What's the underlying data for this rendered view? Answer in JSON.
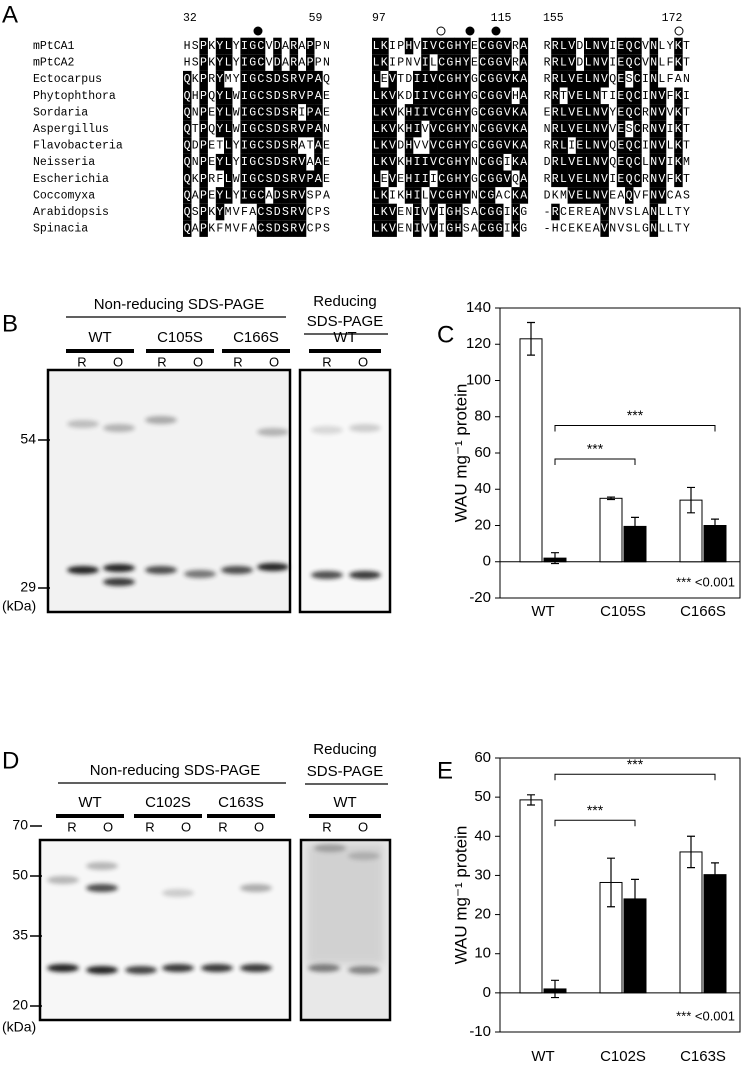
{
  "panels": {
    "a": "A",
    "b": "B",
    "c": "C",
    "d": "D",
    "e": "E"
  },
  "alignment": {
    "positions": [
      32,
      59,
      97,
      115,
      155,
      172
    ],
    "rows": [
      {
        "name": "mPtCA1",
        "blocks": [
          "HSPKYLYIGCVDARAPPN",
          "LKIPHVIVCGHYECGGVRA",
          "RRLVDLNVIEQCVNLYKT"
        ]
      },
      {
        "name": "mPtCA2",
        "blocks": [
          "HSPKYLYIGCVDARAPPN",
          "LKIPNVILCGHYECGGVRA",
          "RRLVDLNVIEQCVNLFKT"
        ]
      },
      {
        "name": "Ectocarpus",
        "blocks": [
          "QKPRYMYIGCSDSRVPAQ",
          "LEVTDIIVCGHYGCGGVKA",
          "RRLVELNVQESCINLFAN"
        ]
      },
      {
        "name": "Phytophthora",
        "blocks": [
          "QHPQYLWIGCSDSRVPAE",
          "LKVKDIIVCGHYGCGGVHA",
          "RRTVELNTIEQCINVFKI"
        ]
      },
      {
        "name": "Sordaria",
        "blocks": [
          "QNPEYLWIGCSDSRIPAE",
          "LKVKHIIVCGHYGCGGVKA",
          "ERLVELNVYEQCRNVVKT"
        ]
      },
      {
        "name": "Aspergillus",
        "blocks": [
          "QTPQYLWIGCSDSRVPAN",
          "LKVKHIVVCGHYNCGGVKA",
          "NRLVELNVVESCRNVIKT"
        ]
      },
      {
        "name": "Flavobacteria",
        "blocks": [
          "QDPETLYIGCSDSRATAE",
          "LKVDHVVVCGHYGCGGVKA",
          "RRLIELNVQEQCINVLKT"
        ]
      },
      {
        "name": "Neisseria",
        "blocks": [
          "QNPEYLYIGCSDSRVAAE",
          "LKVKHIIVCGHYNCGGIKA",
          "DRLVELNVQEQCLNVIKM"
        ]
      },
      {
        "name": "Escherichia",
        "blocks": [
          "QKPRFLWIGCSDSRVPAE",
          "LEVEHIIICGHYGCGGVQA",
          "RRLVELNVIEQCRNVFKT"
        ]
      },
      {
        "name": "Coccomyxa",
        "blocks": [
          "QAPEYLYIGCADSRVSPA",
          "LKIKHILVCGHYNCGACKA",
          "DKMVELNVEAQVFNVCAS"
        ]
      },
      {
        "name": "Arabidopsis",
        "blocks": [
          "QSPKYMVFACSDSRVCPS",
          "LKVENIVVIGHSACGGIKG",
          "-RCEREAVNVSLANLLTY"
        ]
      },
      {
        "name": "Spinacia",
        "blocks": [
          "QAPKFMVFACSDSRVCPS",
          "LKVENIVVIGHSACGGIKG",
          "-HCEKEAVNVSLGNLLTY"
        ]
      }
    ]
  },
  "gels": [
    {
      "header": "Non-reducing SDS-PAGE",
      "groups": [
        "WT",
        "C105S",
        "C166S"
      ],
      "lanes": [
        "R",
        "O"
      ],
      "reducing_header": [
        "Reducing",
        "SDS-PAGE"
      ],
      "reducing_group": "WT",
      "markers": [
        54,
        29
      ],
      "unit": "(kDa)"
    },
    {
      "header": "Non-reducing SDS-PAGE",
      "groups": [
        "WT",
        "C102S",
        "C163S"
      ],
      "lanes": [
        "R",
        "O"
      ],
      "reducing_header": [
        "Reducing",
        "SDS-PAGE"
      ],
      "reducing_group": "WT",
      "markers": [
        70,
        50,
        35,
        20
      ],
      "unit": "(kDa)"
    }
  ],
  "chart_data": [
    {
      "type": "bar",
      "ylabel": "WAU mg⁻¹ protein",
      "categories": [
        "WT",
        "C105S",
        "C166S"
      ],
      "series": [
        {
          "color": "#ffffff",
          "values": [
            123,
            35,
            34
          ],
          "errors": [
            9,
            0.7,
            7
          ]
        },
        {
          "color": "#000000",
          "values": [
            2,
            19.5,
            20
          ],
          "errors": [
            3,
            5,
            3.5
          ]
        }
      ],
      "ylim": [
        -20,
        140
      ],
      "yticks": [
        -20,
        0,
        20,
        40,
        60,
        80,
        100,
        120,
        140
      ],
      "brackets": [
        "***",
        "***"
      ],
      "note": "*** <0.001"
    },
    {
      "type": "bar",
      "ylabel": "WAU mg⁻¹ protein",
      "categories": [
        "WT",
        "C102S",
        "C163S"
      ],
      "series": [
        {
          "color": "#ffffff",
          "values": [
            49.3,
            28.2,
            36
          ],
          "errors": [
            1.3,
            6.2,
            4
          ]
        },
        {
          "color": "#000000",
          "values": [
            1,
            24,
            30.2
          ],
          "errors": [
            2.2,
            5,
            3
          ]
        }
      ],
      "ylim": [
        -10,
        60
      ],
      "yticks": [
        -10,
        0,
        10,
        20,
        30,
        40,
        50,
        60
      ],
      "brackets": [
        "***",
        "***"
      ],
      "note": "*** <0.001"
    }
  ]
}
